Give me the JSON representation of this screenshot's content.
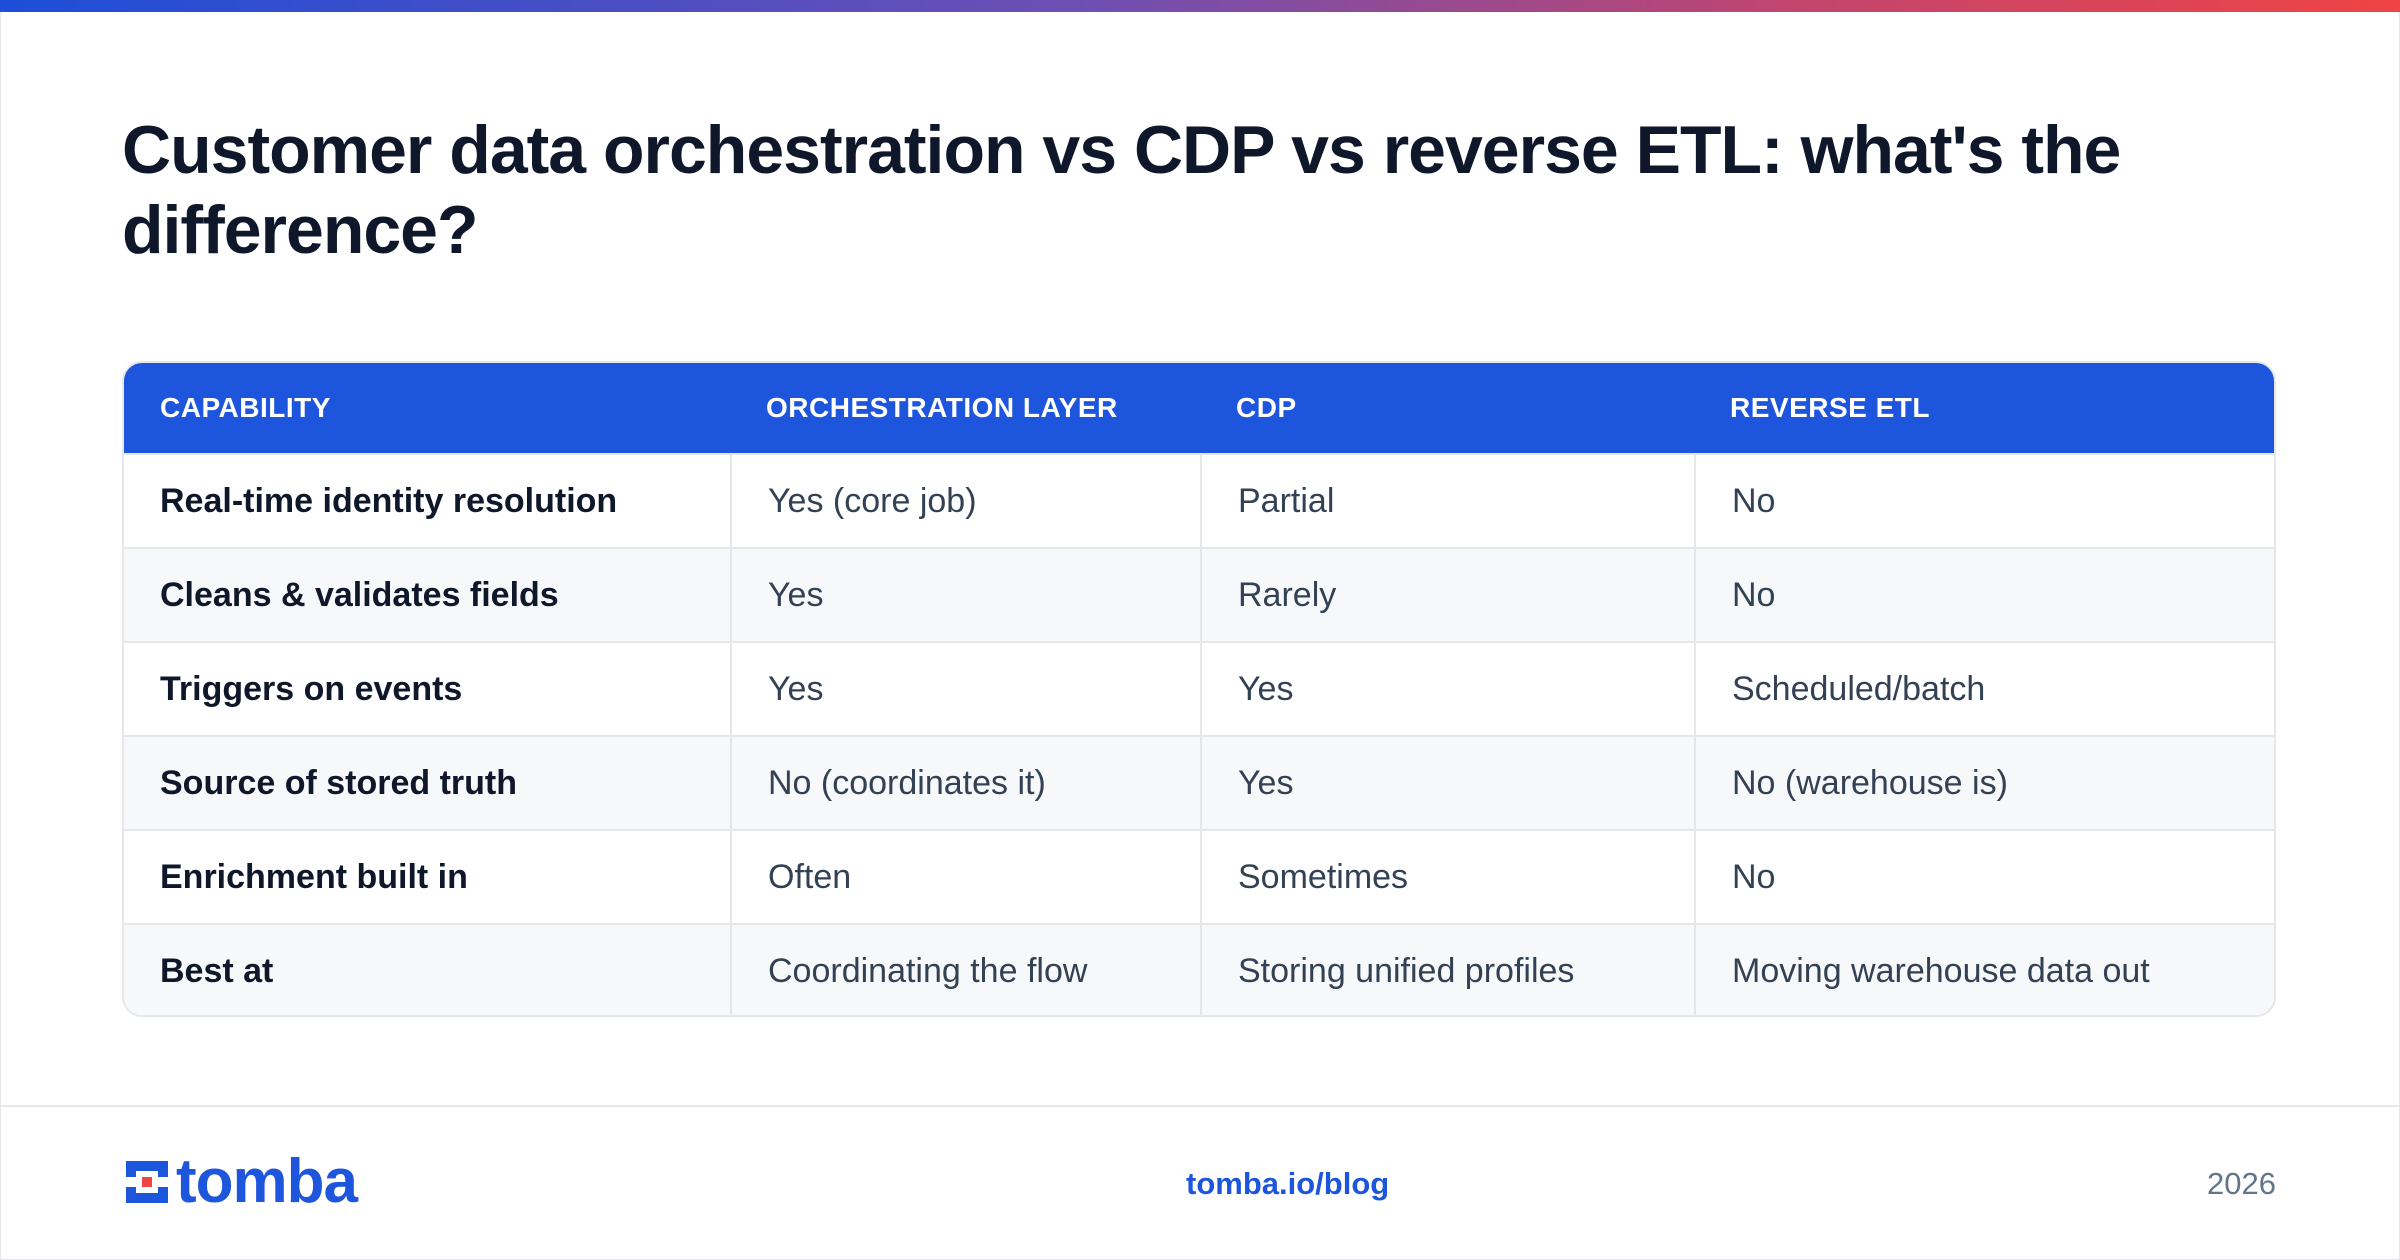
{
  "title": "Customer data orchestration vs CDP vs reverse ETL: what's the difference?",
  "table": {
    "headers": [
      "CAPABILITY",
      "ORCHESTRATION LAYER",
      "CDP",
      "REVERSE ETL"
    ],
    "rows": [
      [
        "Real-time identity resolution",
        "Yes (core job)",
        "Partial",
        "No"
      ],
      [
        "Cleans & validates fields",
        "Yes",
        "Rarely",
        "No"
      ],
      [
        "Triggers on events",
        "Yes",
        "Yes",
        "Scheduled/batch"
      ],
      [
        "Source of stored truth",
        "No (coordinates it)",
        "Yes",
        "No (warehouse is)"
      ],
      [
        "Enrichment built in",
        "Often",
        "Sometimes",
        "No"
      ],
      [
        "Best at",
        "Coordinating the flow",
        "Storing unified profiles",
        "Moving warehouse data out"
      ]
    ]
  },
  "footer": {
    "logo_text": "tomba",
    "link": "tomba.io/blog",
    "year": "2026"
  },
  "colors": {
    "accent": "#1d55dc",
    "logo_red": "#ef4444",
    "gradient_start": "#1d4ed8",
    "gradient_end": "#ef4444"
  },
  "icons": {
    "logo_mark": "tomba-logo-icon"
  }
}
